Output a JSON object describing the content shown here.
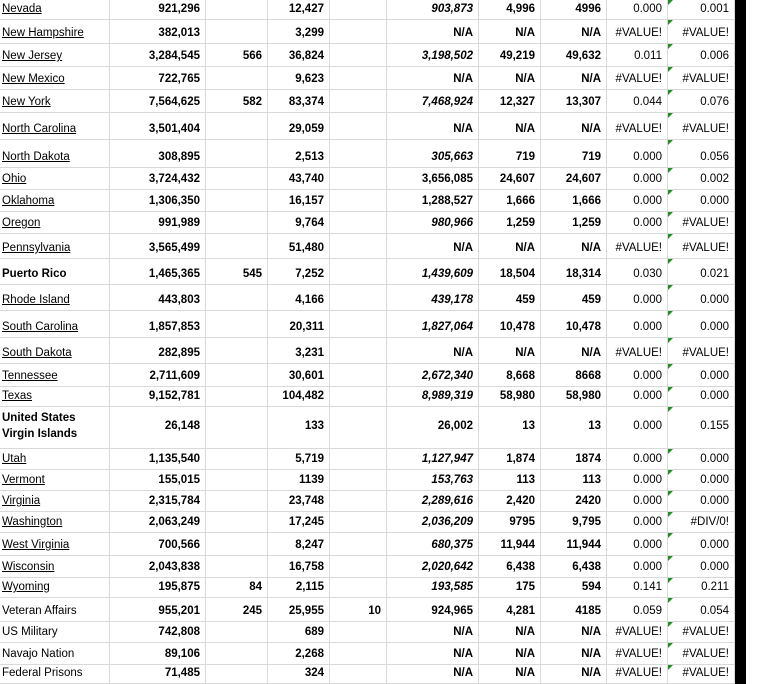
{
  "colors": {
    "gridline": "#d9d9d9",
    "error_indicator_green": "#1e8e1e",
    "page_break_bar": "#000000",
    "text": "#000000",
    "background": "#ffffff"
  },
  "rows": [
    {
      "name": "Nevada",
      "name_style": "underline",
      "b": "921,296",
      "c": "",
      "d": "12,427",
      "e": "",
      "f": "903,873",
      "f_italic": true,
      "g": "4,996",
      "h": "4996",
      "i": "0.000",
      "j": "0.001",
      "j_indicator": true
    },
    {
      "name": "New Hampshire",
      "name_style": "underline",
      "b": "382,013",
      "c": "",
      "d": "3,299",
      "e": "",
      "f": "N/A",
      "f_italic": false,
      "g": "N/A",
      "h": "N/A",
      "i": "#VALUE!",
      "j": "#VALUE!",
      "j_indicator": true
    },
    {
      "name": "New Jersey",
      "name_style": "underline",
      "b": "3,284,545",
      "c": "566",
      "d": "36,824",
      "e": "",
      "f": "3,198,502",
      "f_italic": true,
      "g": "49,219",
      "h": "49,632",
      "i": "0.011",
      "j": "0.006",
      "j_indicator": true
    },
    {
      "name": "New Mexico",
      "name_style": "underline",
      "b": "722,765",
      "c": "",
      "d": "9,623",
      "e": "",
      "f": "N/A",
      "f_italic": false,
      "g": "N/A",
      "h": "N/A",
      "i": "#VALUE!",
      "j": "#VALUE!",
      "j_indicator": true
    },
    {
      "name": "New York",
      "name_style": "underline",
      "b": "7,564,625",
      "c": "582",
      "d": "83,374",
      "e": "",
      "f": "7,468,924",
      "f_italic": true,
      "g": "12,327",
      "h": "13,307",
      "i": "0.044",
      "j": "0.076",
      "j_indicator": true
    },
    {
      "name": "North Carolina",
      "name_style": "underline",
      "b": "3,501,404",
      "c": "",
      "d": "29,059",
      "e": "",
      "f": "N/A",
      "f_italic": false,
      "g": "N/A",
      "h": "N/A",
      "i": "#VALUE!",
      "j": "#VALUE!",
      "j_indicator": true
    },
    {
      "name": "North Dakota",
      "name_style": "underline",
      "b": "308,895",
      "c": "",
      "d": "2,513",
      "e": "",
      "f": "305,663",
      "f_italic": true,
      "g": "719",
      "h": "719",
      "i": "0.000",
      "j": "0.056",
      "j_indicator": true
    },
    {
      "name": "Ohio",
      "name_style": "underline",
      "b": "3,724,432",
      "c": "",
      "d": "43,740",
      "e": "",
      "f": "3,656,085",
      "f_italic": false,
      "g": "24,607",
      "h": "24,607",
      "i": "0.000",
      "j": "0.002",
      "j_indicator": true
    },
    {
      "name": "Oklahoma",
      "name_style": "underline",
      "b": "1,306,350",
      "c": "",
      "d": "16,157",
      "e": "",
      "f": "1,288,527",
      "f_italic": false,
      "g": "1,666",
      "h": "1,666",
      "i": "0.000",
      "j": "0.000",
      "j_indicator": true
    },
    {
      "name": "Oregon",
      "name_style": "underline",
      "b": "991,989",
      "c": "",
      "d": "9,764",
      "e": "",
      "f": "980,966",
      "f_italic": true,
      "g": "1,259",
      "h": "1,259",
      "i": "0.000",
      "j": "#VALUE!",
      "j_indicator": true
    },
    {
      "name": "Pennsylvania",
      "name_style": "underline",
      "b": "3,565,499",
      "c": "",
      "d": "51,480",
      "e": "",
      "f": "N/A",
      "f_italic": false,
      "g": "N/A",
      "h": "N/A",
      "i": "#VALUE!",
      "j": "#VALUE!",
      "j_indicator": true
    },
    {
      "name": "Puerto Rico",
      "name_style": "bold",
      "b": "1,465,365",
      "c": "545",
      "d": "7,252",
      "e": "",
      "f": "1,439,609",
      "f_italic": true,
      "g": "18,504",
      "h": "18,314",
      "i": "0.030",
      "j": "0.021",
      "j_indicator": true
    },
    {
      "name": "Rhode Island",
      "name_style": "underline",
      "b": "443,803",
      "c": "",
      "d": "4,166",
      "e": "",
      "f": "439,178",
      "f_italic": true,
      "g": "459",
      "h": "459",
      "i": "0.000",
      "j": "0.000",
      "j_indicator": true
    },
    {
      "name": "South Carolina",
      "name_style": "underline",
      "b": "1,857,853",
      "c": "",
      "d": "20,311",
      "e": "",
      "f": "1,827,064",
      "f_italic": true,
      "g": "10,478",
      "h": "10,478",
      "i": "0.000",
      "j": "0.000",
      "j_indicator": true
    },
    {
      "name": "South Dakota",
      "name_style": "underline",
      "b": "282,895",
      "c": "",
      "d": "3,231",
      "e": "",
      "f": "N/A",
      "f_italic": false,
      "g": "N/A",
      "h": "N/A",
      "i": "#VALUE!",
      "j": "#VALUE!",
      "j_indicator": true
    },
    {
      "name": "Tennessee",
      "name_style": "underline",
      "b": "2,711,609",
      "c": "",
      "d": "30,601",
      "e": "",
      "f": "2,672,340",
      "f_italic": true,
      "g": "8,668",
      "h": "8668",
      "i": "0.000",
      "j": "0.000",
      "j_indicator": true
    },
    {
      "name": "Texas",
      "name_style": "underline",
      "b": "9,152,781",
      "c": "",
      "d": "104,482",
      "e": "",
      "f": "8,989,319",
      "f_italic": true,
      "g": "58,980",
      "h": "58,980",
      "i": "0.000",
      "j": "0.000",
      "j_indicator": true
    },
    {
      "name": "United States Virgin Islands",
      "name_style": "bold",
      "wrap": true,
      "b": "26,148",
      "c": "",
      "d": "133",
      "e": "",
      "f": "26,002",
      "f_italic": false,
      "g": "13",
      "h": "13",
      "i": "0.000",
      "j": "0.155",
      "j_indicator": true
    },
    {
      "name": "Utah",
      "name_style": "underline",
      "b": "1,135,540",
      "c": "",
      "d": "5,719",
      "e": "",
      "f": "1,127,947",
      "f_italic": true,
      "g": "1,874",
      "h": "1874",
      "i": "0.000",
      "j": "0.000",
      "j_indicator": true
    },
    {
      "name": "Vermont",
      "name_style": "underline",
      "b": "155,015",
      "c": "",
      "d": "1139",
      "e": "",
      "f": "153,763",
      "f_italic": true,
      "g": "113",
      "h": "113",
      "i": "0.000",
      "j": "0.000",
      "j_indicator": true
    },
    {
      "name": "Virginia",
      "name_style": "underline",
      "b": "2,315,784",
      "c": "",
      "d": "23,748",
      "e": "",
      "f": "2,289,616",
      "f_italic": true,
      "g": "2,420",
      "h": "2420",
      "i": "0.000",
      "j": "0.000",
      "j_indicator": true
    },
    {
      "name": "Washington",
      "name_style": "underline",
      "b": "2,063,249",
      "c": "",
      "d": "17,245",
      "e": "",
      "f": "2,036,209",
      "f_italic": true,
      "g": "9795",
      "h": "9,795",
      "i": "0.000",
      "j": "#DIV/0!",
      "j_indicator": true
    },
    {
      "name": "West Virginia",
      "name_style": "underline",
      "b": "700,566",
      "c": "",
      "d": "8,247",
      "e": "",
      "f": "680,375",
      "f_italic": true,
      "g": "11,944",
      "h": "11,944",
      "i": "0.000",
      "j": "0.000",
      "j_indicator": true
    },
    {
      "name": "Wisconsin",
      "name_style": "underline",
      "b": "2,043,838",
      "c": "",
      "d": "16,758",
      "e": "",
      "f": "2,020,642",
      "f_italic": true,
      "g": "6,438",
      "h": "6,438",
      "i": "0.000",
      "j": "0.000",
      "j_indicator": true
    },
    {
      "name": "Wyoming",
      "name_style": "underline",
      "b": "195,875",
      "c": "84",
      "d": "2,115",
      "e": "",
      "f": "193,585",
      "f_italic": true,
      "g": "175",
      "h": "594",
      "i": "0.141",
      "j": "0.211",
      "j_indicator": true
    },
    {
      "name": "Veteran Affairs",
      "name_style": "plain",
      "b": "955,201",
      "c": "245",
      "d": "25,955",
      "e": "10",
      "f": "924,965",
      "f_italic": false,
      "g": "4,281",
      "h": "4185",
      "i": "0.059",
      "j": "0.054",
      "j_indicator": true
    },
    {
      "name": "US Military",
      "name_style": "plain",
      "b": "742,808",
      "c": "",
      "d": "689",
      "e": "",
      "f": "N/A",
      "f_italic": false,
      "g": "N/A",
      "h": "N/A",
      "i": "#VALUE!",
      "j": "#VALUE!",
      "j_indicator": true
    },
    {
      "name": "Navajo Nation",
      "name_style": "plain",
      "b": "89,106",
      "c": "",
      "d": "2,268",
      "e": "",
      "f": "N/A",
      "f_italic": false,
      "g": "N/A",
      "h": "N/A",
      "i": "#VALUE!",
      "j": "#VALUE!",
      "j_indicator": true
    },
    {
      "name": "Federal Prisons",
      "name_style": "plain",
      "b": "71,485",
      "c": "",
      "d": "324",
      "e": "",
      "f": "N/A",
      "f_italic": false,
      "g": "N/A",
      "h": "N/A",
      "i": "#VALUE!",
      "j": "#VALUE!",
      "j_indicator": true
    }
  ]
}
